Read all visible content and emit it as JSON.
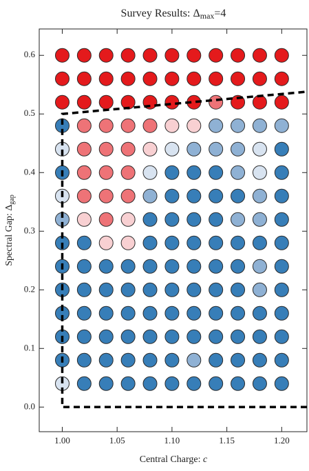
{
  "chart_data": {
    "type": "scatter",
    "title": [
      "Survey Results: Δ",
      "max",
      "=4"
    ],
    "xlabel": [
      "Central Charge:  ",
      "c"
    ],
    "ylabel": [
      "Spectral Gap:  Δ",
      "gap"
    ],
    "xlim": [
      0.979,
      1.223
    ],
    "ylim": [
      -0.042,
      0.645
    ],
    "xticks": [
      {
        "value": 1,
        "label": "1.00"
      },
      1.05,
      {
        "value": 1.1,
        "label": "1.10"
      },
      1.15,
      {
        "value": 1.2,
        "label": "1.20"
      }
    ],
    "yticks": [
      {
        "value": 0,
        "label": "0.0"
      },
      0.1,
      0.2,
      0.3,
      0.4,
      0.5,
      0.6
    ],
    "boundary": {
      "x": [
        1.223,
        1.0,
        1.0,
        1.223
      ],
      "y": [
        0,
        0,
        0.5,
        0.538
      ]
    },
    "x": [
      1,
      1.02,
      1.04,
      1.06,
      1.08,
      1.1,
      1.12,
      1.14,
      1.16,
      1.18,
      1.2,
      1,
      1.02,
      1.04,
      1.06,
      1.08,
      1.1,
      1.12,
      1.14,
      1.16,
      1.18,
      1.2,
      1,
      1.02,
      1.04,
      1.06,
      1.08,
      1.1,
      1.12,
      1.14,
      1.16,
      1.18,
      1.2,
      1,
      1.02,
      1.04,
      1.06,
      1.08,
      1.1,
      1.12,
      1.14,
      1.16,
      1.18,
      1.2,
      1,
      1.02,
      1.04,
      1.06,
      1.08,
      1.1,
      1.12,
      1.14,
      1.16,
      1.18,
      1.2,
      1,
      1.02,
      1.04,
      1.06,
      1.08,
      1.1,
      1.12,
      1.14,
      1.16,
      1.18,
      1.2,
      1,
      1.02,
      1.04,
      1.06,
      1.08,
      1.1,
      1.12,
      1.14,
      1.16,
      1.18,
      1.2,
      1,
      1.02,
      1.04,
      1.06,
      1.08,
      1.1,
      1.12,
      1.14,
      1.16,
      1.18,
      1.2,
      1,
      1.02,
      1.04,
      1.06,
      1.08,
      1.1,
      1.12,
      1.14,
      1.16,
      1.18,
      1.2,
      1,
      1.02,
      1.04,
      1.06,
      1.08,
      1.1,
      1.12,
      1.14,
      1.16,
      1.18,
      1.2,
      1,
      1.02,
      1.04,
      1.06,
      1.08,
      1.1,
      1.12,
      1.14,
      1.16,
      1.18,
      1.2,
      1,
      1.02,
      1.04,
      1.06,
      1.08,
      1.1,
      1.12,
      1.14,
      1.16,
      1.18,
      1.2,
      1,
      1.02,
      1.04,
      1.06,
      1.08,
      1.1,
      1.12,
      1.14,
      1.16,
      1.18,
      1.2,
      1,
      1.02,
      1.04,
      1.06,
      1.08,
      1.1,
      1.12,
      1.14,
      1.16,
      1.18,
      1.2,
      1,
      1.02,
      1.04,
      1.06,
      1.08,
      1.1,
      1.12,
      1.14,
      1.16,
      1.18,
      1.2
    ],
    "values": [
      0.6,
      0.6,
      0.6,
      0.6,
      0.6,
      0.6,
      0.6,
      0.6,
      0.6,
      0.6,
      0.6,
      0.56,
      0.56,
      0.56,
      0.56,
      0.56,
      0.56,
      0.56,
      0.56,
      0.56,
      0.56,
      0.56,
      0.52,
      0.52,
      0.52,
      0.52,
      0.52,
      0.52,
      0.52,
      0.52,
      0.52,
      0.52,
      0.52,
      0.48,
      0.48,
      0.48,
      0.48,
      0.48,
      0.48,
      0.48,
      0.48,
      0.48,
      0.48,
      0.48,
      0.44,
      0.44,
      0.44,
      0.44,
      0.44,
      0.44,
      0.44,
      0.44,
      0.44,
      0.44,
      0.44,
      0.4,
      0.4,
      0.4,
      0.4,
      0.4,
      0.4,
      0.4,
      0.4,
      0.4,
      0.4,
      0.4,
      0.36,
      0.36,
      0.36,
      0.36,
      0.36,
      0.36,
      0.36,
      0.36,
      0.36,
      0.36,
      0.36,
      0.32,
      0.32,
      0.32,
      0.32,
      0.32,
      0.32,
      0.32,
      0.32,
      0.32,
      0.32,
      0.32,
      0.28,
      0.28,
      0.28,
      0.28,
      0.28,
      0.28,
      0.28,
      0.28,
      0.28,
      0.28,
      0.28,
      0.24,
      0.24,
      0.24,
      0.24,
      0.24,
      0.24,
      0.24,
      0.24,
      0.24,
      0.24,
      0.24,
      0.2,
      0.2,
      0.2,
      0.2,
      0.2,
      0.2,
      0.2,
      0.2,
      0.2,
      0.2,
      0.2,
      0.16,
      0.16,
      0.16,
      0.16,
      0.16,
      0.16,
      0.16,
      0.16,
      0.16,
      0.16,
      0.16,
      0.12,
      0.12,
      0.12,
      0.12,
      0.12,
      0.12,
      0.12,
      0.12,
      0.12,
      0.12,
      0.12,
      0.08,
      0.08,
      0.08,
      0.08,
      0.08,
      0.08,
      0.08,
      0.08,
      0.08,
      0.08,
      0.08,
      0.04,
      0.04,
      0.04,
      0.04,
      0.04,
      0.04,
      0.04,
      0.04,
      0.04,
      0.04,
      0.04
    ],
    "colors": [
      "#e41a1c",
      "#e41a1c",
      "#e41a1c",
      "#e41a1c",
      "#e41a1c",
      "#e41a1c",
      "#e41a1c",
      "#e41a1c",
      "#e41a1c",
      "#e41a1c",
      "#e41a1c",
      "#e41a1c",
      "#e41a1c",
      "#e41a1c",
      "#e41a1c",
      "#e41a1c",
      "#e41a1c",
      "#e41a1c",
      "#e41a1c",
      "#e41a1c",
      "#e41a1c",
      "#e41a1c",
      "#e41a1c",
      "#e41a1c",
      "#e41a1c",
      "#e41a1c",
      "#e41a1c",
      "#e41a1c",
      "#e41a1c",
      "#ee7377",
      "#e41a1c",
      "#e41a1c",
      "#e41a1c",
      "#377eb8",
      "#ee7377",
      "#ee7377",
      "#ee7377",
      "#ee7377",
      "#f8d0d2",
      "#f8d0d2",
      "#8fb1d4",
      "#8fb1d4",
      "#8fb1d4",
      "#8fb1d4",
      "#d8e3f0",
      "#ee7377",
      "#ee7377",
      "#ee7377",
      "#f8d0d2",
      "#d8e3f0",
      "#8fb1d4",
      "#8fb1d4",
      "#8fb1d4",
      "#d8e3f0",
      "#377eb8",
      "#377eb8",
      "#ee7377",
      "#ee7377",
      "#ee7377",
      "#d8e3f0",
      "#377eb8",
      "#377eb8",
      "#377eb8",
      "#8fb1d4",
      "#d8e3f0",
      "#377eb8",
      "#d8e3f0",
      "#ee7377",
      "#ee7377",
      "#ee7377",
      "#8fb1d4",
      "#377eb8",
      "#377eb8",
      "#377eb8",
      "#377eb8",
      "#8fb1d4",
      "#377eb8",
      "#8fb1d4",
      "#f8d0d2",
      "#ee7377",
      "#f8d0d2",
      "#377eb8",
      "#377eb8",
      "#377eb8",
      "#377eb8",
      "#8fb1d4",
      "#8fb1d4",
      "#377eb8",
      "#377eb8",
      "#377eb8",
      "#f8d0d2",
      "#f8d0d2",
      "#377eb8",
      "#377eb8",
      "#377eb8",
      "#377eb8",
      "#377eb8",
      "#377eb8",
      "#377eb8",
      "#377eb8",
      "#377eb8",
      "#377eb8",
      "#377eb8",
      "#377eb8",
      "#377eb8",
      "#377eb8",
      "#377eb8",
      "#377eb8",
      "#8fb1d4",
      "#377eb8",
      "#377eb8",
      "#377eb8",
      "#377eb8",
      "#377eb8",
      "#377eb8",
      "#377eb8",
      "#377eb8",
      "#377eb8",
      "#377eb8",
      "#8fb1d4",
      "#377eb8",
      "#377eb8",
      "#377eb8",
      "#377eb8",
      "#377eb8",
      "#377eb8",
      "#377eb8",
      "#377eb8",
      "#377eb8",
      "#377eb8",
      "#377eb8",
      "#377eb8",
      "#377eb8",
      "#377eb8",
      "#377eb8",
      "#377eb8",
      "#377eb8",
      "#377eb8",
      "#377eb8",
      "#377eb8",
      "#377eb8",
      "#377eb8",
      "#377eb8",
      "#377eb8",
      "#377eb8",
      "#377eb8",
      "#377eb8",
      "#377eb8",
      "#377eb8",
      "#8fb1d4",
      "#377eb8",
      "#377eb8",
      "#377eb8",
      "#377eb8",
      "#d8e3f0",
      "#377eb8",
      "#377eb8",
      "#377eb8",
      "#377eb8",
      "#377eb8",
      "#377eb8",
      "#377eb8",
      "#377eb8",
      "#377eb8",
      "#377eb8"
    ]
  }
}
